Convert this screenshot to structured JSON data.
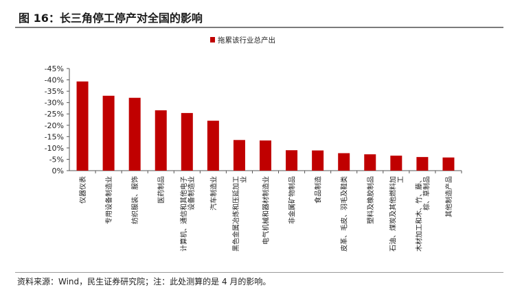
{
  "figure": {
    "title": "图 16：长三角停工停产对全国的影响",
    "source_note": "资料来源：Wind，民生证券研究院；注：此处测算的是 4 月的影响。"
  },
  "chart_data": {
    "type": "bar",
    "title": "",
    "xlabel": "",
    "ylabel": "",
    "categories": [
      "仪器仪表",
      "专用设备制造业",
      "纺织服装、服饰",
      "医药制品",
      "计算机、通信和其他电子设备制造业",
      "汽车制造业",
      "黑色金属冶炼和压延加工业",
      "电气机械和器材制造业",
      "非金属矿物制品",
      "食品制造",
      "皮革、毛皮、羽毛及鞋类",
      "塑料及橡胶制品",
      "石油、煤炭及其他燃料加工",
      "木材加工和木、竹、藤、棕、草制品",
      "其他制造产品"
    ],
    "category_lines": [
      [
        "仪器仪表"
      ],
      [
        "专用设备制造业"
      ],
      [
        "纺织服装、服饰"
      ],
      [
        "医药制品"
      ],
      [
        "计算机、通信和其他电子",
        "设备制造业"
      ],
      [
        "汽车制造业"
      ],
      [
        "黑色金属冶炼和压延加工",
        "业"
      ],
      [
        "电气机械和器材制造业"
      ],
      [
        "非金属矿物制品"
      ],
      [
        "食品制造"
      ],
      [
        "皮革、毛皮、羽毛及鞋类"
      ],
      [
        "塑料及橡胶制品"
      ],
      [
        "石油、煤炭及其他燃料加",
        "工"
      ],
      [
        "木材加工和木、竹、藤、",
        "棕、草制品"
      ],
      [
        "其他制造产品"
      ]
    ],
    "series": [
      {
        "name": "拖累该行业总产出",
        "color": "#c00000",
        "values": [
          -39.3,
          -33.0,
          -32.1,
          -26.6,
          -25.4,
          -22.0,
          -13.5,
          -13.3,
          -9.0,
          -8.9,
          -7.7,
          -7.2,
          -6.6,
          -6.0,
          -5.8
        ]
      }
    ],
    "ylim": [
      -45,
      0
    ],
    "yticks": [
      0,
      -5,
      -10,
      -15,
      -20,
      -25,
      -30,
      -35,
      -40,
      -45
    ],
    "ytick_labels": [
      "0%",
      "-5%",
      "-10%",
      "-15%",
      "-20%",
      "-25%",
      "-30%",
      "-35%",
      "-40%",
      "-45%"
    ],
    "y_reversed": true,
    "grid": false,
    "legend": "top-center"
  }
}
